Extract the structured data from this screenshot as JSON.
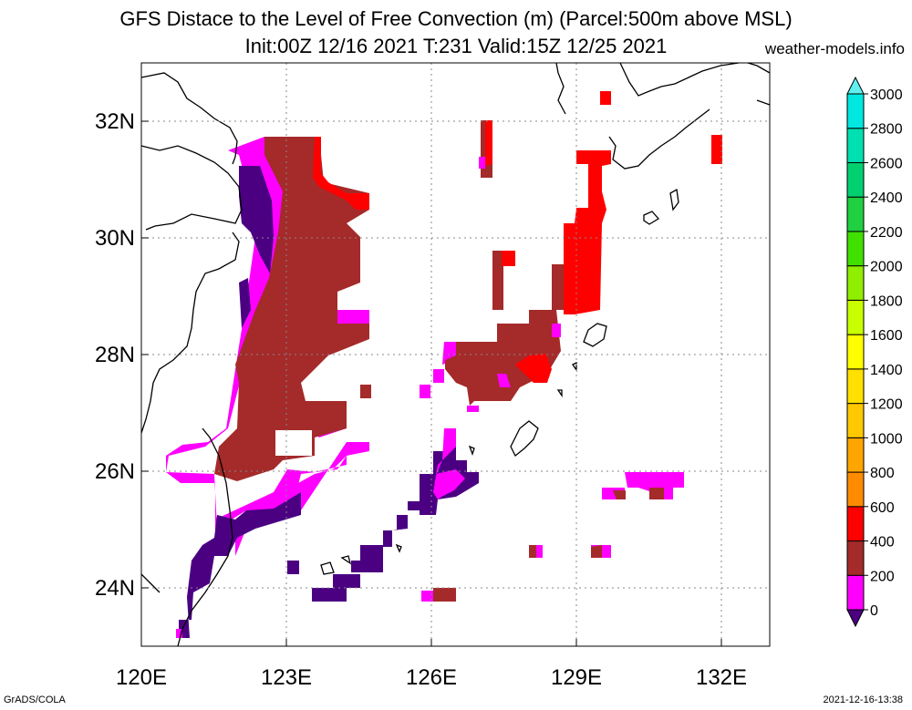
{
  "title": {
    "line1": "GFS Distace to the Level of Free Convection (m) (Parcel:500m above MSL)",
    "line2": "Init:00Z 12/16 2021 T:231 Valid:15Z 12/25 2021",
    "site": "weather-models.info"
  },
  "map": {
    "lon_range": [
      120,
      133
    ],
    "lat_range": [
      23,
      33
    ],
    "lon_ticks": [
      {
        "value": 120,
        "label": "120E"
      },
      {
        "value": 123,
        "label": "123E"
      },
      {
        "value": 126,
        "label": "126E"
      },
      {
        "value": 129,
        "label": "129E"
      },
      {
        "value": 132,
        "label": "132E"
      }
    ],
    "lat_ticks": [
      {
        "value": 24,
        "label": "24N"
      },
      {
        "value": 26,
        "label": "26N"
      },
      {
        "value": 28,
        "label": "28N"
      },
      {
        "value": 30,
        "label": "30N"
      },
      {
        "value": 32,
        "label": "32N"
      }
    ],
    "grid": true
  },
  "colorbar": {
    "levels": [
      "0",
      "200",
      "400",
      "600",
      "800",
      "1000",
      "1200",
      "1400",
      "1600",
      "1800",
      "2000",
      "2200",
      "2400",
      "2600",
      "2800",
      "3000"
    ],
    "colors": [
      "#4b0082",
      "#ff00ff",
      "#a52a2a",
      "#ff0000",
      "#ff8c00",
      "#ffa500",
      "#ffc800",
      "#ffe000",
      "#ffff00",
      "#c8ff00",
      "#90ee00",
      "#40e000",
      "#20d040",
      "#00d070",
      "#00e0b0",
      "#00e8e0",
      "#60f0f0"
    ],
    "orientation": "vertical",
    "placement": "right"
  },
  "footer": {
    "left": "GrADS/COLA",
    "right": "2021-12-16-13:38"
  }
}
